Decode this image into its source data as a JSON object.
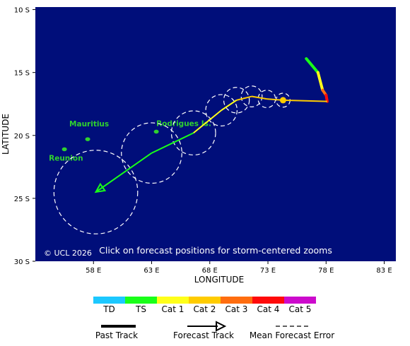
{
  "map": {
    "axis": {
      "x_label": "LONGITUDE",
      "y_label": "LATITUDE",
      "x_ticks": [
        "58 E",
        "63 E",
        "68 E",
        "73 E",
        "78 E",
        "83 E"
      ],
      "y_ticks": [
        "10 S",
        "15 S",
        "20 S",
        "25 S",
        "30 S"
      ],
      "lon_range": [
        53,
        84
      ],
      "lat_range": [
        -9.8,
        -30
      ]
    },
    "places": [
      {
        "name": "Mauritius",
        "lon": 57.5,
        "lat": -20.3
      },
      {
        "name": "Reunion",
        "lon": 55.5,
        "lat": -21.1
      },
      {
        "name": "Rodrigues Is.",
        "lon": 63.4,
        "lat": -19.7
      }
    ],
    "copyright": "© UCL 2026",
    "hint": "Click on forecast positions for storm-centered zooms",
    "track": {
      "past": [
        {
          "lon": 76.3,
          "lat": -13.9,
          "cat": "TS"
        },
        {
          "lon": 77.3,
          "lat": -15.0,
          "cat": "TS"
        },
        {
          "lon": 77.7,
          "lat": -16.4,
          "cat": "Cat 1"
        },
        {
          "lon": 78.0,
          "lat": -16.8,
          "cat": "Cat 3"
        },
        {
          "lon": 78.1,
          "lat": -17.3,
          "cat": "Cat 4"
        }
      ],
      "current": {
        "lon": 74.3,
        "lat": -17.2,
        "cat": "Cat 2"
      },
      "forecast": [
        {
          "lon": 78.1,
          "lat": -17.3,
          "cat": "Cat 2"
        },
        {
          "lon": 74.3,
          "lat": -17.2,
          "cat": "Cat 2"
        },
        {
          "lon": 72.9,
          "lat": -17.1,
          "cat": "Cat 2"
        },
        {
          "lon": 71.6,
          "lat": -16.9,
          "cat": "Cat 2"
        },
        {
          "lon": 70.3,
          "lat": -17.2,
          "cat": "Cat 2"
        },
        {
          "lon": 69.0,
          "lat": -18.0,
          "cat": "Cat 1"
        },
        {
          "lon": 66.6,
          "lat": -19.8,
          "cat": "Cat 1"
        },
        {
          "lon": 63.0,
          "lat": -21.4,
          "cat": "TS"
        },
        {
          "lon": 58.2,
          "lat": -24.5,
          "cat": "TS"
        }
      ],
      "error_circles": [
        {
          "lon": 74.3,
          "lat": -17.2,
          "radius_deg": 0.6
        },
        {
          "lon": 72.9,
          "lat": -17.1,
          "radius_deg": 0.75
        },
        {
          "lon": 71.6,
          "lat": -16.9,
          "radius_deg": 0.9
        },
        {
          "lon": 70.3,
          "lat": -17.2,
          "radius_deg": 1.1
        },
        {
          "lon": 69.0,
          "lat": -18.0,
          "radius_deg": 1.35
        },
        {
          "lon": 66.6,
          "lat": -19.8,
          "radius_deg": 1.9
        },
        {
          "lon": 63.0,
          "lat": -21.4,
          "radius_deg": 2.6
        },
        {
          "lon": 58.2,
          "lat": -24.5,
          "radius_deg": 3.6
        }
      ]
    }
  },
  "legend": {
    "categories": [
      {
        "label": "TD",
        "color": "#1cc8ff"
      },
      {
        "label": "TS",
        "color": "#19ff19"
      },
      {
        "label": "Cat 1",
        "color": "#ffff1a"
      },
      {
        "label": "Cat 2",
        "color": "#ffcc00"
      },
      {
        "label": "Cat 3",
        "color": "#ff6d0f"
      },
      {
        "label": "Cat 4",
        "color": "#ff0a0a"
      },
      {
        "label": "Cat 5",
        "color": "#cc0acc"
      }
    ],
    "past_track": "Past Track",
    "forecast_track": "Forecast Track",
    "mean_error": "Mean Forecast Error"
  },
  "colors": {
    "ocean": "#000e7a",
    "land": "#2fd12f"
  }
}
